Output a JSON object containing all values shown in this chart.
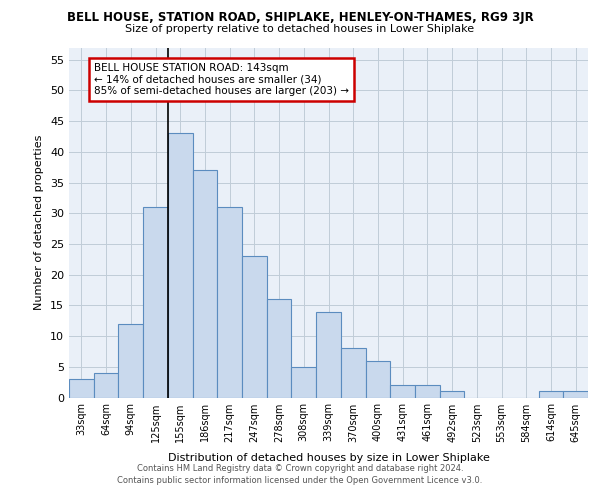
{
  "title": "BELL HOUSE, STATION ROAD, SHIPLAKE, HENLEY-ON-THAMES, RG9 3JR",
  "subtitle": "Size of property relative to detached houses in Lower Shiplake",
  "xlabel": "Distribution of detached houses by size in Lower Shiplake",
  "ylabel": "Number of detached properties",
  "bin_labels": [
    "33sqm",
    "64sqm",
    "94sqm",
    "125sqm",
    "155sqm",
    "186sqm",
    "217sqm",
    "247sqm",
    "278sqm",
    "308sqm",
    "339sqm",
    "370sqm",
    "400sqm",
    "431sqm",
    "461sqm",
    "492sqm",
    "523sqm",
    "553sqm",
    "584sqm",
    "614sqm",
    "645sqm"
  ],
  "bar_values": [
    3,
    4,
    12,
    31,
    43,
    37,
    31,
    23,
    16,
    5,
    14,
    8,
    6,
    2,
    2,
    1,
    0,
    0,
    0,
    1,
    1
  ],
  "bar_color": "#c9d9ed",
  "bar_edge_color": "#5b8cbf",
  "property_line_x": 3.5,
  "property_line_color": "#000000",
  "annotation_text": "BELL HOUSE STATION ROAD: 143sqm\n← 14% of detached houses are smaller (34)\n85% of semi-detached houses are larger (203) →",
  "annotation_box_color": "#ffffff",
  "annotation_box_edge_color": "#cc0000",
  "ylim": [
    0,
    57
  ],
  "yticks": [
    0,
    5,
    10,
    15,
    20,
    25,
    30,
    35,
    40,
    45,
    50,
    55
  ],
  "bg_color": "#eaf0f8",
  "footer_line1": "Contains HM Land Registry data © Crown copyright and database right 2024.",
  "footer_line2": "Contains public sector information licensed under the Open Government Licence v3.0."
}
